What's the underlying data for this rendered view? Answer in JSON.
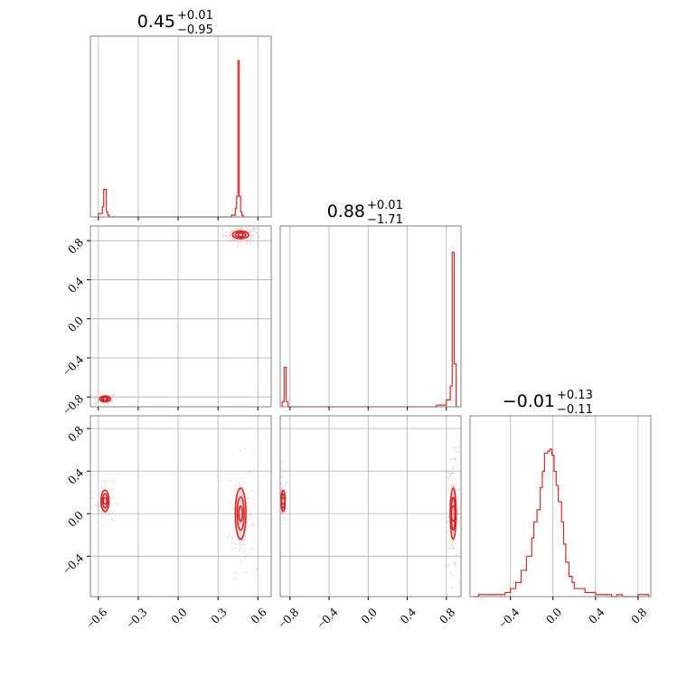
{
  "chart_data": {
    "type": "corner",
    "color": "#d62728",
    "grid": true,
    "titles": [
      {
        "value": "0.45",
        "sup": "+0.01",
        "sub": "−0.95"
      },
      {
        "value": "0.88",
        "sup": "+0.01",
        "sub": "−1.71"
      },
      {
        "value": "−0.01",
        "sup": "+0.13",
        "sub": "−0.11"
      }
    ],
    "params": [
      {
        "range": [
          -0.66,
          0.7
        ],
        "ticks": [
          -0.6,
          -0.3,
          0.0,
          0.3,
          0.6
        ],
        "tick_labels": [
          "−0.6",
          "−0.3",
          "0.0",
          "0.3",
          "0.6"
        ]
      },
      {
        "range": [
          -0.9,
          0.95
        ],
        "ticks": [
          -0.8,
          -0.4,
          0.0,
          0.4,
          0.8
        ],
        "tick_labels": [
          "−0.8",
          "−0.4",
          "0.0",
          "0.4",
          "0.8"
        ]
      },
      {
        "range": [
          -0.78,
          0.92
        ],
        "ticks": [
          -0.4,
          0.0,
          0.4,
          0.8
        ],
        "tick_labels": [
          "−0.4",
          "0.0",
          "0.4",
          "0.8"
        ]
      }
    ],
    "histograms": [
      {
        "param": 0,
        "bin_edges": [
          -0.6,
          -0.57,
          -0.56,
          -0.55,
          -0.54,
          -0.53,
          -0.52,
          0.4,
          0.43,
          0.44,
          0.45,
          0.46,
          0.47,
          0.48,
          0.49,
          0.5
        ],
        "counts": [
          0.02,
          0.06,
          0.16,
          0.16,
          0.03,
          0.01,
          0.0,
          0.01,
          0.05,
          0.12,
          0.91,
          0.12,
          0.03,
          0.01,
          0.0
        ],
        "ymax": 1.0
      },
      {
        "param": 1,
        "bin_edges": [
          -0.88,
          -0.86,
          -0.84,
          -0.82,
          0.7,
          0.8,
          0.84,
          0.86,
          0.88,
          0.9,
          0.92
        ],
        "counts": [
          0.03,
          0.23,
          0.03,
          0.0,
          0.01,
          0.04,
          0.12,
          0.9,
          0.25,
          0.0
        ],
        "ymax": 1.0
      },
      {
        "param": 2,
        "bin_edges": [
          -0.75,
          -0.7,
          -0.6,
          -0.55,
          -0.5,
          -0.45,
          -0.4,
          -0.35,
          -0.3,
          -0.25,
          -0.2,
          -0.18,
          -0.15,
          -0.12,
          -0.1,
          -0.08,
          -0.05,
          -0.03,
          -0.01,
          0.01,
          0.03,
          0.05,
          0.08,
          0.1,
          0.12,
          0.15,
          0.18,
          0.2,
          0.25,
          0.3,
          0.35,
          0.4,
          0.45,
          0.5,
          0.55,
          0.6,
          0.65,
          0.7,
          0.8,
          0.9
        ],
        "counts": [
          0.0,
          0.01,
          0.01,
          0.01,
          0.01,
          0.02,
          0.04,
          0.07,
          0.13,
          0.2,
          0.29,
          0.37,
          0.43,
          0.54,
          0.62,
          0.71,
          0.72,
          0.73,
          0.7,
          0.62,
          0.55,
          0.47,
          0.37,
          0.26,
          0.17,
          0.1,
          0.07,
          0.04,
          0.04,
          0.02,
          0.02,
          0.01,
          0.01,
          0.01,
          0.0,
          0.01,
          0.0,
          0.0,
          0.01
        ],
        "ymax": 0.85
      }
    ],
    "contours_2d": [
      {
        "x_param": 0,
        "y_param": 1,
        "modes": [
          {
            "cx": 0.47,
            "cy": 0.86,
            "sx": 0.03,
            "sy": 0.02
          },
          {
            "cx": -0.55,
            "cy": -0.82,
            "sx": 0.02,
            "sy": 0.015
          }
        ]
      },
      {
        "x_param": 0,
        "y_param": 2,
        "modes": [
          {
            "cx": 0.47,
            "cy": 0.0,
            "sx": 0.02,
            "sy": 0.12
          },
          {
            "cx": -0.55,
            "cy": 0.12,
            "sx": 0.015,
            "sy": 0.05
          }
        ]
      },
      {
        "x_param": 1,
        "y_param": 2,
        "modes": [
          {
            "cx": 0.87,
            "cy": 0.0,
            "sx": 0.015,
            "sy": 0.12
          },
          {
            "cx": -0.87,
            "cy": 0.12,
            "sx": 0.01,
            "sy": 0.05
          }
        ]
      }
    ]
  }
}
